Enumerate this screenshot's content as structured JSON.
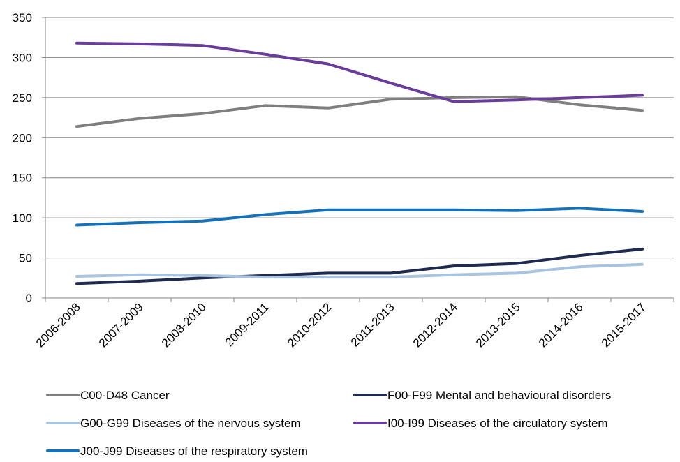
{
  "chart_data": {
    "type": "line",
    "title": "",
    "xlabel": "",
    "ylabel": "",
    "ylim": [
      0,
      350
    ],
    "yticks": [
      0,
      50,
      100,
      150,
      200,
      250,
      300,
      350
    ],
    "grid": "horizontal",
    "legend_position": "bottom",
    "categories": [
      "2006-2008",
      "2007-2009",
      "2008-2010",
      "2009-2011",
      "2010-2012",
      "2011-2013",
      "2012-2014",
      "2013-2015",
      "2014-2016",
      "2015-2017"
    ],
    "series": [
      {
        "name": "C00-D48 Cancer",
        "color": "#7f7f7f",
        "values": [
          214,
          224,
          230,
          240,
          237,
          248,
          250,
          251,
          241,
          234
        ]
      },
      {
        "name": "F00-F99 Mental and behavioural disorders",
        "color": "#1f2a4f",
        "values": [
          18,
          21,
          25,
          28,
          31,
          31,
          40,
          43,
          53,
          61
        ]
      },
      {
        "name": "G00-G99 Diseases of the nervous system",
        "color": "#a9c4e0",
        "values": [
          27,
          29,
          28,
          26,
          26,
          26,
          29,
          31,
          39,
          42
        ]
      },
      {
        "name": "I00-I99 Diseases of the circulatory system",
        "color": "#6a3d9a",
        "values": [
          318,
          317,
          315,
          304,
          292,
          268,
          245,
          247,
          250,
          253
        ]
      },
      {
        "name": "J00-J99 Diseases of the respiratory system",
        "color": "#1570b8",
        "values": [
          91,
          94,
          96,
          104,
          110,
          110,
          110,
          109,
          112,
          108
        ]
      }
    ]
  }
}
